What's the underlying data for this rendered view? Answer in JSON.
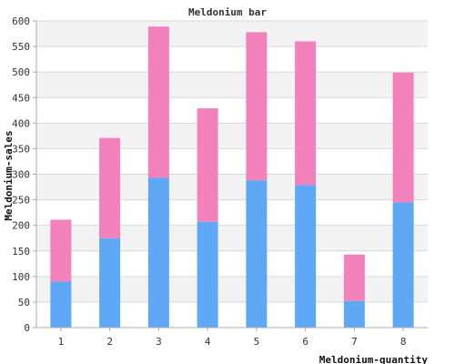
{
  "chart_data": {
    "type": "bar",
    "stacked": true,
    "title": "Meldonium bar",
    "xlabel": "Meldonium-quantity",
    "ylabel": "Meldonium-sales",
    "categories": [
      "1",
      "2",
      "3",
      "4",
      "5",
      "6",
      "7",
      "8"
    ],
    "series": [
      {
        "values": [
          90,
          175,
          293,
          207,
          288,
          279,
          52,
          245
        ],
        "color": "#5fa8f6"
      },
      {
        "values": [
          121,
          196,
          296,
          222,
          290,
          281,
          91,
          254
        ],
        "color": "#f281bc"
      }
    ],
    "ylim": [
      0,
      600
    ],
    "yticks": [
      0,
      50,
      100,
      150,
      200,
      250,
      300,
      350,
      400,
      450,
      500,
      550,
      600
    ],
    "grid": true,
    "grid_band_color": "#f3f3f3",
    "grid_line_color": "#d8d8d8",
    "axis_color": "#aaaaaa"
  }
}
